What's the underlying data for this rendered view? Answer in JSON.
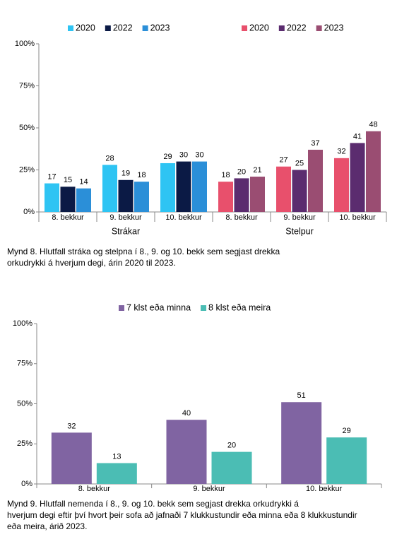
{
  "chart_data": [
    {
      "type": "bar",
      "groups": [
        {
          "name": "Strákar",
          "categories": [
            "8. bekkur",
            "9. bekkur",
            "10. bekkur"
          ],
          "series": [
            {
              "name": "2020",
              "color": "#2ec4f3",
              "values": [
                17,
                28,
                29
              ]
            },
            {
              "name": "2022",
              "color": "#0b1a45",
              "values": [
                15,
                19,
                30
              ]
            },
            {
              "name": "2023",
              "color": "#2b8fd8",
              "values": [
                14,
                18,
                30
              ]
            }
          ]
        },
        {
          "name": "Stelpur",
          "categories": [
            "8. bekkur",
            "9. bekkur",
            "10. bekkur"
          ],
          "series": [
            {
              "name": "2020",
              "color": "#e8506c",
              "values": [
                18,
                27,
                32
              ]
            },
            {
              "name": "2022",
              "color": "#5b2c6f",
              "values": [
                20,
                25,
                41
              ]
            },
            {
              "name": "2023",
              "color": "#9a4d72",
              "values": [
                21,
                37,
                48
              ]
            }
          ]
        }
      ],
      "ylim": [
        0,
        100
      ],
      "yticks": [
        {
          "value": 0,
          "label": "0%"
        },
        {
          "value": 25,
          "label": "25%"
        },
        {
          "value": 50,
          "label": "50%"
        },
        {
          "value": 75,
          "label": "75%"
        },
        {
          "value": 100,
          "label": "100%"
        }
      ],
      "grid": false,
      "caption": [
        "Mynd 8. Hlutfall stráka og stelpna í 8., 9. og 10. bekk sem segjast drekka",
        "orkudrykki á hverjum degi, árin 2020 til 2023."
      ]
    },
    {
      "type": "bar",
      "categories": [
        "8. bekkur",
        "9. bekkur",
        "10. bekkur"
      ],
      "series": [
        {
          "name": "7 klst eða minna",
          "color": "#8064a2",
          "values": [
            32,
            40,
            51
          ]
        },
        {
          "name": "8 klst eða meira",
          "color": "#4bbdb4",
          "values": [
            13,
            20,
            29
          ]
        }
      ],
      "ylim": [
        0,
        100
      ],
      "yticks": [
        {
          "value": 0,
          "label": "0%"
        },
        {
          "value": 25,
          "label": "25%"
        },
        {
          "value": 50,
          "label": "50%"
        },
        {
          "value": 75,
          "label": "75%"
        },
        {
          "value": 100,
          "label": "100%"
        }
      ],
      "grid": false,
      "caption": [
        "Mynd 9. Hlutfall nemenda í 8., 9. og 10. bekk sem segjast drekka orkudrykki á",
        "hverjum degi eftir því hvort þeir sofa að jafnaði 7 klukkustundir eða minna eða 8 klukkustundir",
        "eða meira, árið 2023."
      ]
    }
  ]
}
